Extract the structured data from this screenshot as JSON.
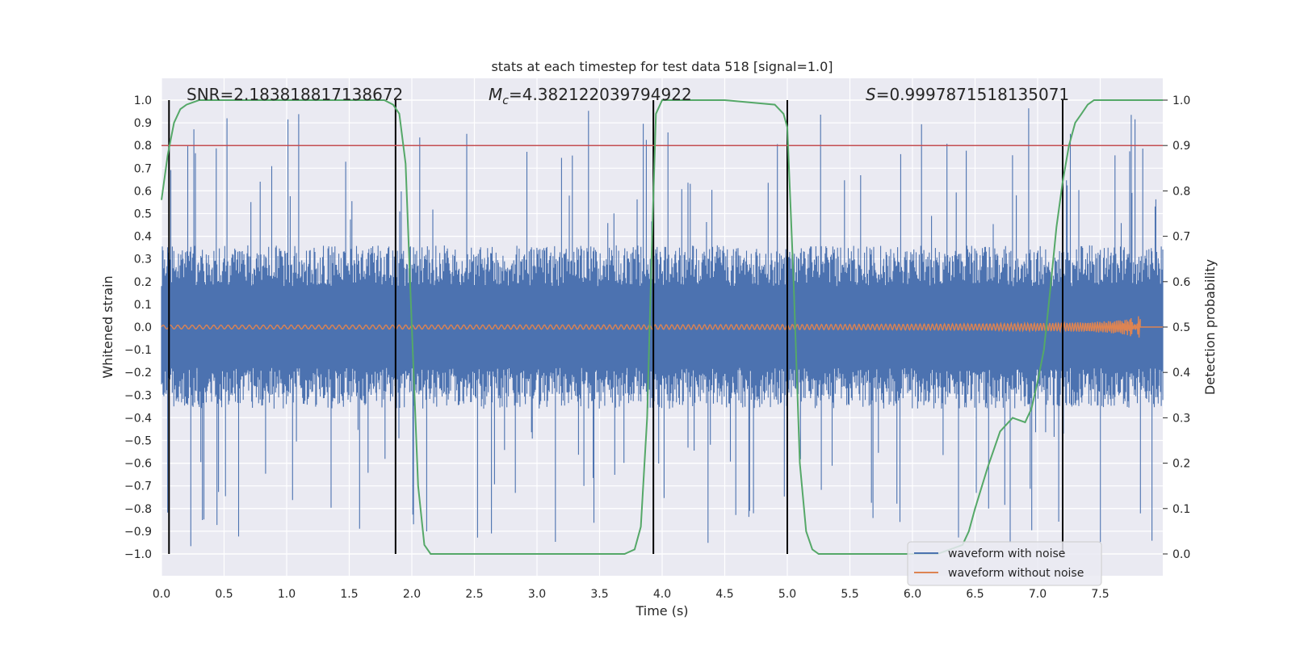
{
  "chart_data": {
    "type": "line",
    "title": "stats at each timestep for test data 518 [signal=1.0]",
    "xlabel": "Time (s)",
    "ylabel_left": "Whitened strain",
    "ylabel_right": "Detection probability",
    "xlim": [
      0.0,
      8.0
    ],
    "ylim_left": [
      -1.05,
      1.05
    ],
    "ylim_right": [
      -0.05,
      1.05
    ],
    "x_ticks": [
      "0.0",
      "0.5",
      "1.0",
      "1.5",
      "2.0",
      "2.5",
      "3.0",
      "3.5",
      "4.0",
      "4.5",
      "5.0",
      "5.5",
      "6.0",
      "6.5",
      "7.0",
      "7.5"
    ],
    "y_ticks_left": [
      "1.0",
      "0.9",
      "0.8",
      "0.7",
      "0.6",
      "0.5",
      "0.4",
      "0.3",
      "0.2",
      "0.1",
      "0.0",
      "−0.1",
      "−0.2",
      "−0.3",
      "−0.4",
      "−0.5",
      "−0.6",
      "−0.7",
      "−0.8",
      "−0.9",
      "−1.0"
    ],
    "y_ticks_right": [
      "1.0",
      "0.9",
      "0.8",
      "0.7",
      "0.6",
      "0.5",
      "0.4",
      "0.3",
      "0.2",
      "0.1",
      "0.0"
    ],
    "annotations": {
      "snr": "SNR=2.183818817138672",
      "mc": "M",
      "mc_sub": "c",
      "mc_value": "=4.382122039794922",
      "s": "S",
      "s_value": "=0.9997871518135071"
    },
    "threshold": {
      "value": 0.9,
      "axis": "right",
      "color": "#c44e52"
    },
    "vertical_lines": [
      0.06,
      1.87,
      3.93,
      5.0,
      7.2
    ],
    "series": [
      {
        "name": "waveform with noise",
        "color": "#4c72b0",
        "amplitude_typical": 0.3,
        "amplitude_peak": 0.97
      },
      {
        "name": "waveform without noise",
        "color": "#dd8452"
      },
      {
        "name": "detection probability",
        "color": "#55a868",
        "axis": "right",
        "x": [
          0.0,
          0.05,
          0.1,
          0.15,
          0.2,
          0.3,
          0.4,
          0.5,
          1.0,
          1.5,
          1.78,
          1.85,
          1.9,
          1.95,
          2.0,
          2.05,
          2.1,
          2.15,
          2.2,
          2.5,
          3.0,
          3.5,
          3.7,
          3.78,
          3.83,
          3.88,
          3.92,
          3.95,
          4.0,
          4.05,
          4.5,
          4.9,
          4.97,
          5.0,
          5.05,
          5.1,
          5.15,
          5.2,
          5.25,
          5.5,
          6.0,
          6.2,
          6.3,
          6.4,
          6.45,
          6.5,
          6.6,
          6.7,
          6.8,
          6.9,
          6.95,
          7.0,
          7.05,
          7.1,
          7.15,
          7.2,
          7.25,
          7.3,
          7.35,
          7.4,
          7.45,
          7.5,
          7.6,
          8.0
        ],
        "y": [
          0.78,
          0.88,
          0.95,
          0.98,
          0.99,
          1.0,
          1.0,
          1.0,
          1.0,
          1.0,
          1.0,
          0.99,
          0.97,
          0.86,
          0.5,
          0.15,
          0.02,
          0.0,
          0.0,
          0.0,
          0.0,
          0.0,
          0.0,
          0.01,
          0.06,
          0.3,
          0.7,
          0.97,
          1.0,
          1.0,
          1.0,
          0.99,
          0.97,
          0.94,
          0.6,
          0.2,
          0.05,
          0.01,
          0.0,
          0.0,
          0.0,
          0.0,
          0.01,
          0.02,
          0.05,
          0.1,
          0.19,
          0.27,
          0.3,
          0.29,
          0.32,
          0.38,
          0.45,
          0.58,
          0.72,
          0.82,
          0.9,
          0.95,
          0.97,
          0.99,
          1.0,
          1.0,
          1.0,
          1.0
        ]
      }
    ],
    "legend": {
      "placement": "lower-right",
      "entries": [
        "waveform with noise",
        "waveform without noise"
      ]
    }
  }
}
